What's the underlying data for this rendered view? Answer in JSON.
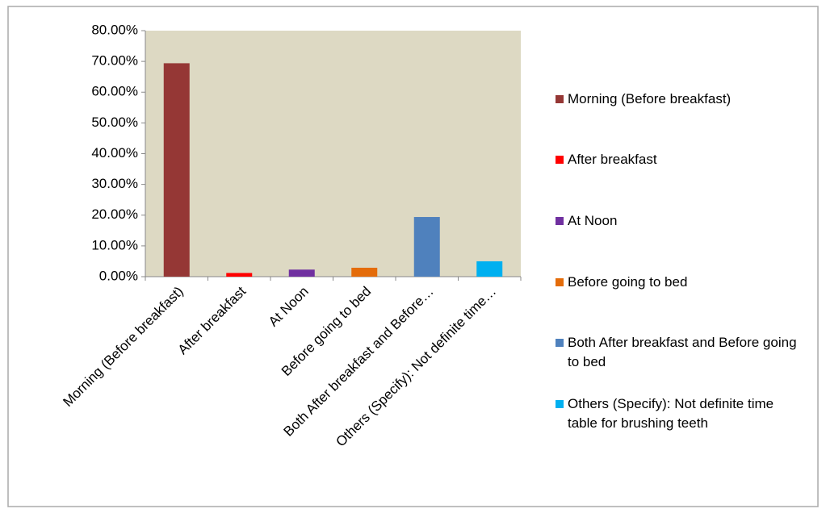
{
  "chart_data": {
    "type": "bar",
    "categories": [
      "Morning (Before breakfast)",
      "After breakfast",
      "At Noon",
      "Before going to bed",
      "Both After breakfast and Before…",
      "Others (Specify): Not definite time…"
    ],
    "values": [
      69.4,
      1.2,
      2.3,
      2.9,
      19.4,
      5.0
    ],
    "colors": [
      "#953735",
      "#ff0000",
      "#7030a0",
      "#e46c0a",
      "#4f81bd",
      "#00b0f0"
    ],
    "legend": [
      "Morning (Before breakfast)",
      "After breakfast",
      "At Noon",
      "Before going to bed",
      "Both After breakfast and Before going to bed",
      "Others (Specify): Not definite time table for brushing teeth"
    ],
    "ylim": [
      0,
      80
    ],
    "yticks": [
      {
        "value": 0,
        "label": "0.00%"
      },
      {
        "value": 10,
        "label": "10.00%"
      },
      {
        "value": 20,
        "label": "20.00%"
      },
      {
        "value": 30,
        "label": "30.00%"
      },
      {
        "value": 40,
        "label": "40.00%"
      },
      {
        "value": 50,
        "label": "50.00%"
      },
      {
        "value": 60,
        "label": "60.00%"
      },
      {
        "value": 70,
        "label": "70.00%"
      },
      {
        "value": 80,
        "label": "80.00%"
      }
    ],
    "grid": false
  }
}
